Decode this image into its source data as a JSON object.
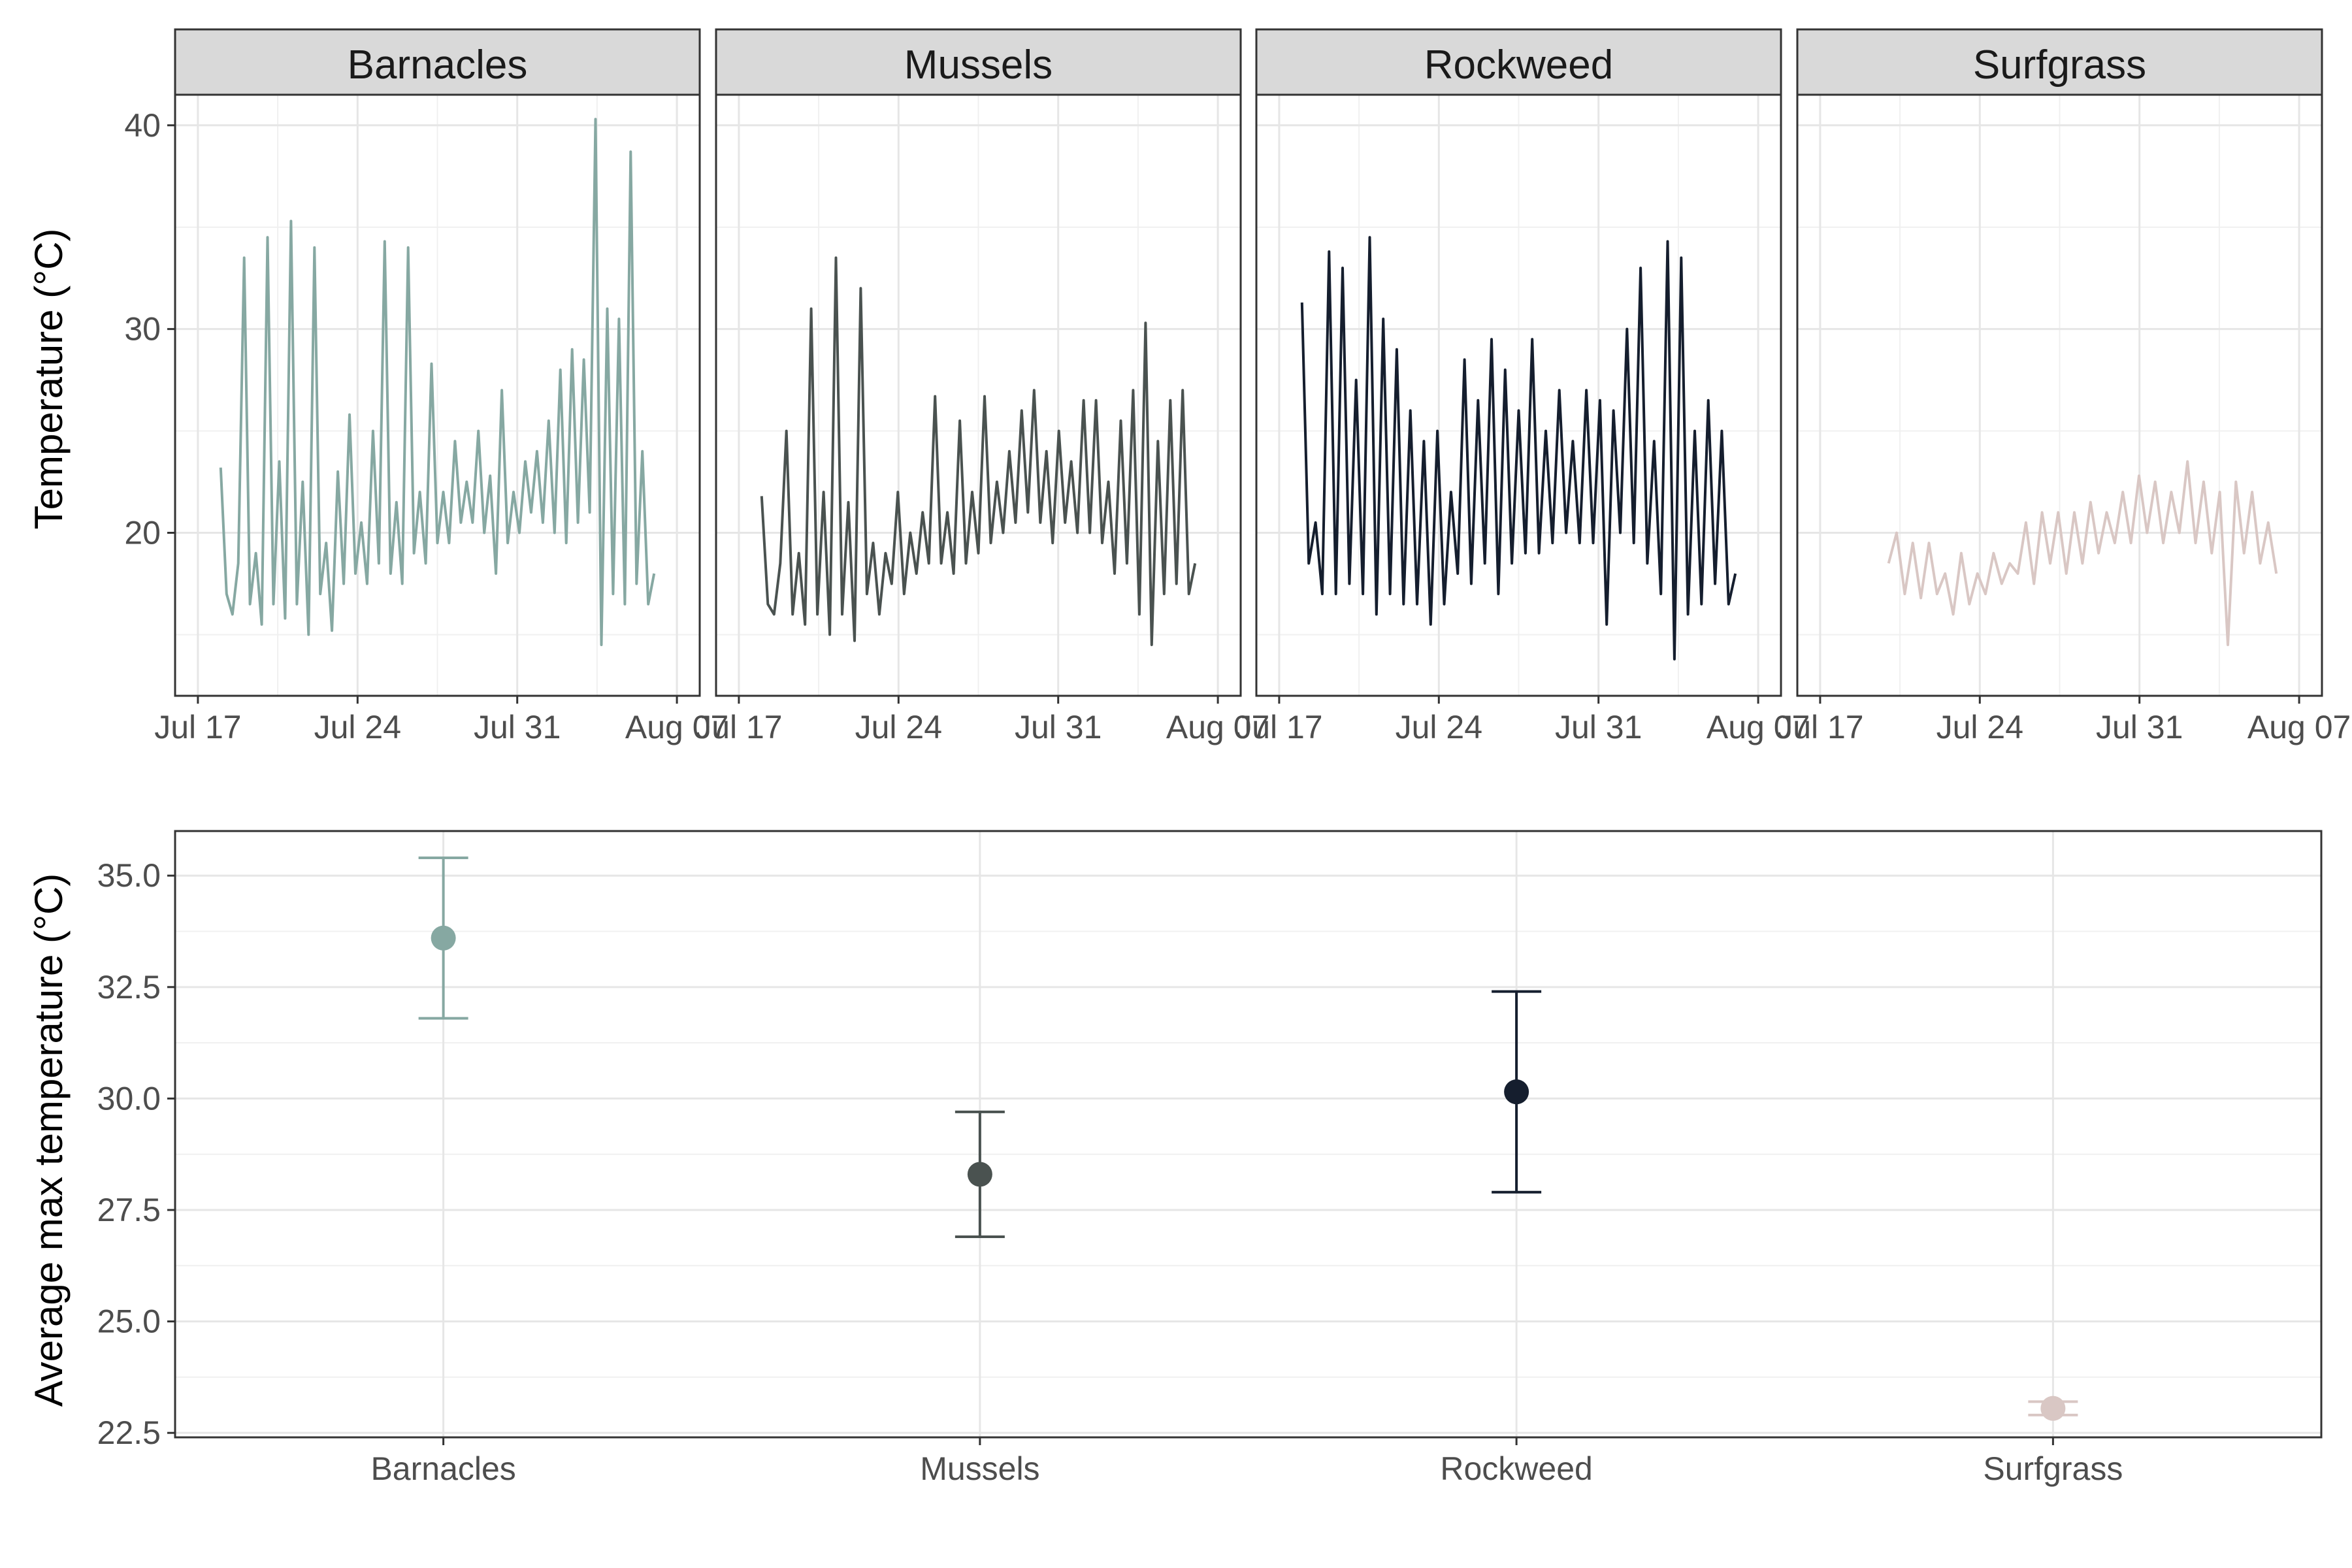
{
  "colors": {
    "Barnacles": "#86a8a2",
    "Mussels": "#4a5250",
    "Rockweed": "#151e2e",
    "Surfgrass": "#d9c7c4"
  },
  "chart_data": [
    {
      "type": "line",
      "facet_var": "habitat",
      "facets": [
        "Barnacles",
        "Mussels",
        "Rockweed",
        "Surfgrass"
      ],
      "xlabel": "",
      "ylabel": "Temperature (°C)",
      "x_ticks": [
        "Jul 17",
        "Jul 24",
        "Jul 31",
        "Aug 07"
      ],
      "x_range": [
        "2023-07-16",
        "2023-08-08"
      ],
      "y_ticks": [
        20,
        30,
        40
      ],
      "ylim": [
        12,
        41.5
      ],
      "grid": true,
      "series": [
        {
          "facet": "Barnacles",
          "start": "2023-07-18",
          "end": "2023-08-06",
          "values": [
            23.2,
            17.0,
            16.0,
            18.5,
            33.5,
            16.5,
            19.0,
            15.5,
            34.5,
            16.5,
            23.5,
            15.8,
            35.3,
            16.5,
            22.5,
            15.0,
            34.0,
            17.0,
            19.5,
            15.2,
            23.0,
            17.5,
            25.8,
            18.0,
            20.5,
            17.5,
            25.0,
            18.5,
            34.3,
            18.0,
            21.5,
            17.5,
            34.0,
            19.0,
            22.0,
            18.5,
            28.3,
            19.5,
            22.0,
            19.5,
            24.5,
            20.5,
            22.5,
            20.5,
            25.0,
            20.0,
            22.8,
            18.0,
            27.0,
            19.5,
            22.0,
            20.0,
            23.5,
            21.0,
            24.0,
            20.5,
            25.5,
            20.0,
            28.0,
            19.5,
            29.0,
            20.5,
            28.5,
            21.0,
            40.3,
            14.5,
            31.0,
            17.0,
            30.5,
            16.5,
            38.7,
            17.5,
            24.0,
            16.5,
            18.0
          ]
        },
        {
          "facet": "Mussels",
          "start": "2023-07-18",
          "end": "2023-08-06",
          "values": [
            21.8,
            16.5,
            16.0,
            18.5,
            25.0,
            16.0,
            19.0,
            15.5,
            31.0,
            16.0,
            22.0,
            15.0,
            33.5,
            16.0,
            21.5,
            14.7,
            32.0,
            17.0,
            19.5,
            16.0,
            19.0,
            17.5,
            22.0,
            17.0,
            20.0,
            18.0,
            21.0,
            18.5,
            26.7,
            18.5,
            21.0,
            18.0,
            25.5,
            18.5,
            22.0,
            19.0,
            26.7,
            19.5,
            22.5,
            20.0,
            24.0,
            20.5,
            26.0,
            21.0,
            27.0,
            20.5,
            24.0,
            19.5,
            25.0,
            20.5,
            23.5,
            20.0,
            26.5,
            20.0,
            26.5,
            19.5,
            22.5,
            18.0,
            25.5,
            18.5,
            27.0,
            16.0,
            30.3,
            14.5,
            24.5,
            17.0,
            26.5,
            17.5,
            27.0,
            17.0,
            18.5
          ]
        },
        {
          "facet": "Rockweed",
          "start": "2023-07-18",
          "end": "2023-08-06",
          "values": [
            31.3,
            18.5,
            20.5,
            17.0,
            33.8,
            17.0,
            33.0,
            17.5,
            27.5,
            17.0,
            34.5,
            16.0,
            30.5,
            17.0,
            29.0,
            16.5,
            26.0,
            16.5,
            24.5,
            15.5,
            25.0,
            16.5,
            22.0,
            18.0,
            28.5,
            17.5,
            26.5,
            18.5,
            29.5,
            17.0,
            28.0,
            18.5,
            26.0,
            19.0,
            29.5,
            19.0,
            25.0,
            19.5,
            27.0,
            20.0,
            24.5,
            19.5,
            27.0,
            19.5,
            26.5,
            15.5,
            26.0,
            20.0,
            30.0,
            19.5,
            33.0,
            18.5,
            24.5,
            17.0,
            34.3,
            13.8,
            33.5,
            16.0,
            25.0,
            16.5,
            26.5,
            17.5,
            25.0,
            16.5,
            18.0
          ]
        },
        {
          "facet": "Surfgrass",
          "start": "2023-07-20",
          "end": "2023-08-06",
          "values": [
            18.5,
            20.0,
            17.0,
            19.5,
            16.8,
            19.5,
            17.0,
            18.0,
            16.0,
            19.0,
            16.5,
            18.0,
            17.0,
            19.0,
            17.5,
            18.5,
            18.0,
            20.5,
            17.5,
            21.0,
            18.5,
            21.0,
            18.0,
            21.0,
            18.5,
            21.5,
            19.0,
            21.0,
            19.5,
            22.0,
            19.5,
            22.8,
            20.0,
            22.5,
            19.5,
            22.0,
            20.0,
            23.5,
            19.5,
            22.5,
            19.0,
            22.0,
            14.5,
            22.5,
            19.0,
            22.0,
            18.5,
            20.5,
            18.0
          ]
        }
      ]
    },
    {
      "type": "scatter",
      "error_bars": true,
      "categories": [
        "Barnacles",
        "Mussels",
        "Rockweed",
        "Surfgrass"
      ],
      "values": [
        33.6,
        28.3,
        30.15,
        23.05
      ],
      "lower": [
        31.8,
        26.9,
        27.9,
        22.9
      ],
      "upper": [
        35.4,
        29.7,
        32.4,
        23.2
      ],
      "xlabel": "",
      "ylabel": "Average max temperature (°C)",
      "y_ticks": [
        "22.5",
        "25.0",
        "27.5",
        "30.0",
        "32.5",
        "35.0"
      ],
      "ylim": [
        22.4,
        36.0
      ],
      "grid": true
    }
  ]
}
